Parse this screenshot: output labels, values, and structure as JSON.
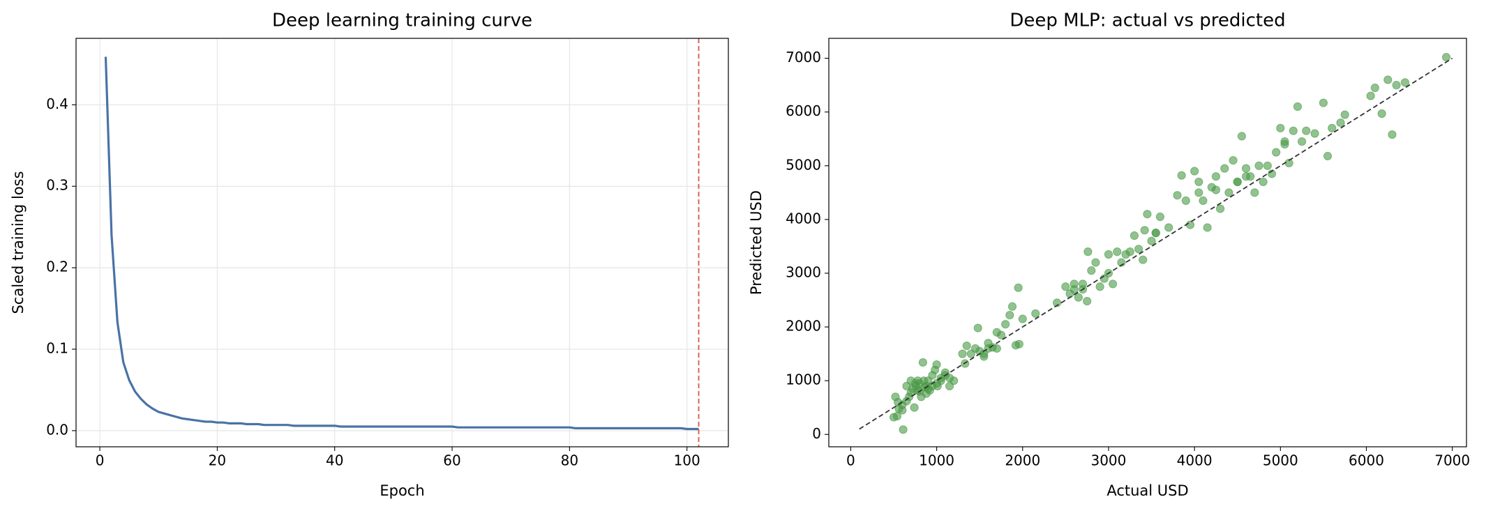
{
  "chart_data": [
    {
      "type": "line",
      "title": "Deep learning training curve",
      "xlabel": "Epoch",
      "ylabel": "Scaled training loss",
      "x": [
        1,
        2,
        3,
        4,
        5,
        6,
        7,
        8,
        9,
        10,
        11,
        12,
        13,
        14,
        15,
        16,
        17,
        18,
        19,
        20,
        21,
        22,
        23,
        24,
        25,
        26,
        27,
        28,
        29,
        30,
        31,
        32,
        33,
        34,
        35,
        36,
        37,
        38,
        39,
        40,
        41,
        42,
        43,
        44,
        45,
        46,
        47,
        48,
        49,
        50,
        51,
        52,
        53,
        54,
        55,
        56,
        57,
        58,
        59,
        60,
        61,
        62,
        63,
        64,
        65,
        66,
        67,
        68,
        69,
        70,
        71,
        72,
        73,
        74,
        75,
        76,
        77,
        78,
        79,
        80,
        81,
        82,
        83,
        84,
        85,
        86,
        87,
        88,
        89,
        90,
        91,
        92,
        93,
        94,
        95,
        96,
        97,
        98,
        99,
        100,
        101,
        102
      ],
      "values": [
        0.459,
        0.24,
        0.133,
        0.084,
        0.062,
        0.048,
        0.039,
        0.032,
        0.027,
        0.023,
        0.021,
        0.019,
        0.017,
        0.015,
        0.014,
        0.013,
        0.012,
        0.011,
        0.011,
        0.01,
        0.01,
        0.009,
        0.009,
        0.009,
        0.008,
        0.008,
        0.008,
        0.007,
        0.007,
        0.007,
        0.007,
        0.007,
        0.006,
        0.006,
        0.006,
        0.006,
        0.006,
        0.006,
        0.006,
        0.006,
        0.005,
        0.005,
        0.005,
        0.005,
        0.005,
        0.005,
        0.005,
        0.005,
        0.005,
        0.005,
        0.005,
        0.005,
        0.005,
        0.005,
        0.005,
        0.005,
        0.005,
        0.005,
        0.005,
        0.005,
        0.004,
        0.004,
        0.004,
        0.004,
        0.004,
        0.004,
        0.004,
        0.004,
        0.004,
        0.004,
        0.004,
        0.004,
        0.004,
        0.004,
        0.004,
        0.004,
        0.004,
        0.004,
        0.004,
        0.004,
        0.003,
        0.003,
        0.003,
        0.003,
        0.003,
        0.003,
        0.003,
        0.003,
        0.003,
        0.003,
        0.003,
        0.003,
        0.003,
        0.003,
        0.003,
        0.003,
        0.003,
        0.003,
        0.003,
        0.002,
        0.002,
        0.002
      ],
      "color": "#4a72a6",
      "vline": {
        "x": 102,
        "color": "#d9534f"
      },
      "xlim": [
        -4.05,
        107.05
      ],
      "xticks": [
        0,
        20,
        40,
        60,
        80,
        100
      ],
      "ylim": [
        -0.0198,
        0.4816
      ],
      "yticks": [
        {
          "value": 0,
          "label": "0.0"
        },
        0.1,
        0.2,
        0.3,
        0.4
      ],
      "grid": true
    },
    {
      "type": "scatter",
      "title": "Deep MLP: actual vs predicted",
      "xlabel": "Actual USD",
      "ylabel": "Predicted USD",
      "x": [
        500,
        520,
        540,
        560,
        600,
        610,
        650,
        680,
        700,
        720,
        740,
        760,
        780,
        800,
        820,
        840,
        860,
        880,
        900,
        920,
        950,
        980,
        1000,
        1010,
        1050,
        1100,
        1150,
        1200,
        1330,
        1350,
        1400,
        1450,
        1480,
        1500,
        1550,
        1600,
        1650,
        1700,
        1750,
        1800,
        1850,
        1880,
        1920,
        1950,
        1960,
        2000,
        2150,
        2400,
        2500,
        2550,
        2600,
        2650,
        2700,
        2750,
        2760,
        2800,
        2850,
        2900,
        2950,
        3000,
        3050,
        3100,
        3150,
        3200,
        3300,
        3350,
        3400,
        3420,
        3450,
        3500,
        3550,
        3600,
        3700,
        3800,
        3850,
        3900,
        3950,
        4000,
        4050,
        4100,
        4150,
        4200,
        4250,
        4300,
        4350,
        4400,
        4450,
        4500,
        4550,
        4600,
        4650,
        4700,
        4750,
        4800,
        4900,
        4950,
        5000,
        5050,
        5100,
        5150,
        5200,
        5250,
        5300,
        5400,
        5500,
        5550,
        5600,
        5700,
        5750,
        6050,
        6100,
        6180,
        6250,
        6300,
        6350,
        6450,
        6930,
        650,
        700,
        750,
        800,
        850,
        900,
        950,
        1000,
        1050,
        1100,
        1150,
        600,
        550,
        780,
        880,
        1300,
        1550,
        1600,
        1700,
        2600,
        2700,
        3000,
        3250,
        3550,
        4050,
        4250,
        4500,
        4600,
        4850,
        5050
      ],
      "values": [
        320,
        700,
        340,
        480,
        550,
        90,
        620,
        700,
        780,
        850,
        500,
        900,
        820,
        950,
        700,
        1340,
        880,
        760,
        1000,
        820,
        1100,
        1200,
        1300,
        900,
        1050,
        1150,
        1050,
        1000,
        1320,
        1650,
        1500,
        1600,
        1980,
        1550,
        1450,
        1700,
        1620,
        1900,
        1850,
        2050,
        2220,
        2380,
        1660,
        2730,
        1680,
        2150,
        2250,
        2450,
        2750,
        2620,
        2800,
        2550,
        2700,
        2480,
        3400,
        3050,
        3200,
        2750,
        2900,
        3350,
        2800,
        3400,
        3200,
        3350,
        3700,
        3450,
        3250,
        3800,
        4100,
        3600,
        3750,
        4050,
        3850,
        4450,
        4820,
        4350,
        3900,
        4900,
        4500,
        4350,
        3850,
        4600,
        4800,
        4200,
        4950,
        4500,
        5100,
        4700,
        5550,
        4950,
        4800,
        4500,
        5000,
        4700,
        4850,
        5250,
        5700,
        5400,
        5050,
        5650,
        6100,
        5450,
        5650,
        5600,
        6170,
        5180,
        5700,
        5800,
        5950,
        6300,
        6450,
        5970,
        6600,
        5580,
        6500,
        6550,
        7020,
        900,
        1000,
        950,
        800,
        1000,
        850,
        900,
        950,
        1000,
        1100,
        900,
        450,
        600,
        1000,
        900,
        1500,
        1500,
        1600,
        1600,
        2700,
        2800,
        3000,
        3400,
        3750,
        4700,
        4550,
        4700,
        4800,
        5000,
        5450
      ],
      "color": "#4a9a46",
      "alpha": 0.6,
      "reference_line": {
        "x": [
          100,
          7000
        ],
        "values": [
          100,
          7000
        ],
        "color": "#333333"
      },
      "xlim": [
        -255,
        7165
      ],
      "xticks": [
        0,
        1000,
        2000,
        3000,
        4000,
        5000,
        6000,
        7000
      ],
      "ylim": [
        -230,
        7371
      ],
      "yticks": [
        0,
        1000,
        2000,
        3000,
        4000,
        5000,
        6000,
        7000
      ],
      "grid": false
    }
  ]
}
